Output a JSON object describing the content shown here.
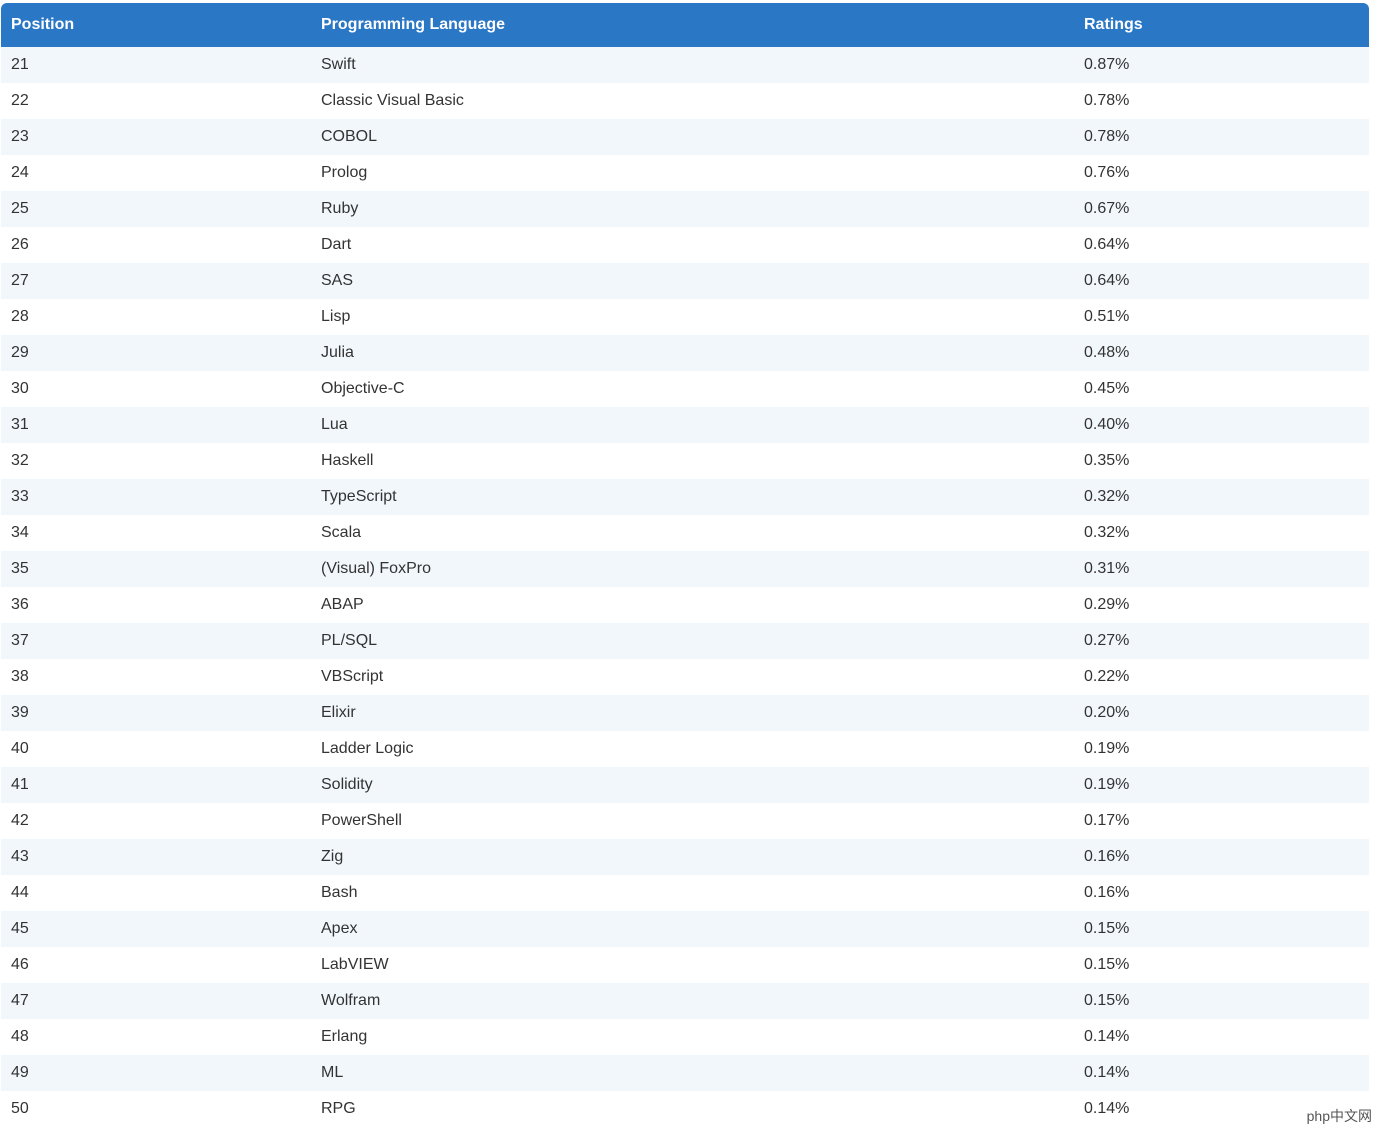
{
  "table": {
    "header": [
      "Position",
      "Programming Language",
      "Ratings"
    ],
    "rows": [
      [
        "21",
        "Swift",
        "0.87%"
      ],
      [
        "22",
        "Classic Visual Basic",
        "0.78%"
      ],
      [
        "23",
        "COBOL",
        "0.78%"
      ],
      [
        "24",
        "Prolog",
        "0.76%"
      ],
      [
        "25",
        "Ruby",
        "0.67%"
      ],
      [
        "26",
        "Dart",
        "0.64%"
      ],
      [
        "27",
        "SAS",
        "0.64%"
      ],
      [
        "28",
        "Lisp",
        "0.51%"
      ],
      [
        "29",
        "Julia",
        "0.48%"
      ],
      [
        "30",
        "Objective-C",
        "0.45%"
      ],
      [
        "31",
        "Lua",
        "0.40%"
      ],
      [
        "32",
        "Haskell",
        "0.35%"
      ],
      [
        "33",
        "TypeScript",
        "0.32%"
      ],
      [
        "34",
        "Scala",
        "0.32%"
      ],
      [
        "35",
        "(Visual) FoxPro",
        "0.31%"
      ],
      [
        "36",
        "ABAP",
        "0.29%"
      ],
      [
        "37",
        "PL/SQL",
        "0.27%"
      ],
      [
        "38",
        "VBScript",
        "0.22%"
      ],
      [
        "39",
        "Elixir",
        "0.20%"
      ],
      [
        "40",
        "Ladder Logic",
        "0.19%"
      ],
      [
        "41",
        "Solidity",
        "0.19%"
      ],
      [
        "42",
        "PowerShell",
        "0.17%"
      ],
      [
        "43",
        "Zig",
        "0.16%"
      ],
      [
        "44",
        "Bash",
        "0.16%"
      ],
      [
        "45",
        "Apex",
        "0.15%"
      ],
      [
        "46",
        "LabVIEW",
        "0.15%"
      ],
      [
        "47",
        "Wolfram",
        "0.15%"
      ],
      [
        "48",
        "Erlang",
        "0.14%"
      ],
      [
        "49",
        "ML",
        "0.14%"
      ],
      [
        "50",
        "RPG",
        "0.14%"
      ]
    ]
  },
  "watermark": "php中文网"
}
